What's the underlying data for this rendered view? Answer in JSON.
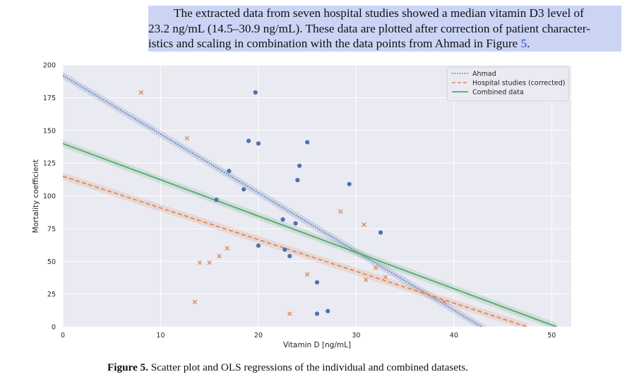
{
  "paragraph": {
    "line1": "The extracted data from seven hospital studies showed a median vitamin D3 level of",
    "line2": "23.2 ng/mL (14.5–30.9 ng/mL). These data are plotted after correction of patient character-",
    "line3_pre": "istics and scaling in combination with the data points from Ahmad in Figure ",
    "line3_link": "5",
    "line3_post": "."
  },
  "caption": {
    "label": "Figure 5.",
    "text": " Scatter plot and OLS regressions of the individual and combined datasets."
  },
  "colors": {
    "ahmad": "#4c72b0",
    "hospital": "#dd8452",
    "combined": "#55a868",
    "plot_bg": "#eaeaf2",
    "grid": "#ffffff"
  },
  "chart_data": {
    "type": "scatter",
    "xlabel": "Vitamin D [ng/mL]",
    "ylabel": "Mortality coefficient",
    "xlim": [
      0,
      52
    ],
    "ylim": [
      0,
      200
    ],
    "xticks": [
      0,
      10,
      20,
      30,
      40,
      50
    ],
    "yticks": [
      0,
      25,
      50,
      75,
      100,
      125,
      150,
      175,
      200
    ],
    "grid": true,
    "legend_position": "top-right",
    "legend": [
      {
        "label": "Ahmad",
        "style": "dotted",
        "color": "#4c72b0"
      },
      {
        "label": "Hospital studies (corrected)",
        "style": "dashed",
        "color": "#dd8452"
      },
      {
        "label": "Combined data",
        "style": "solid",
        "color": "#55a868"
      }
    ],
    "scatter": [
      {
        "name": "Ahmad",
        "marker": "circle",
        "color": "#4c72b0",
        "points": [
          [
            19.7,
            179
          ],
          [
            19.0,
            142
          ],
          [
            20.0,
            140
          ],
          [
            25.0,
            141
          ],
          [
            24.2,
            123
          ],
          [
            24.0,
            112
          ],
          [
            17.0,
            119
          ],
          [
            18.5,
            105
          ],
          [
            29.3,
            109
          ],
          [
            15.7,
            97
          ],
          [
            22.5,
            82
          ],
          [
            23.8,
            79
          ],
          [
            32.5,
            72
          ],
          [
            20.0,
            62
          ],
          [
            22.7,
            59
          ],
          [
            23.2,
            54
          ],
          [
            26.0,
            34
          ],
          [
            26.0,
            10
          ],
          [
            27.1,
            12
          ]
        ]
      },
      {
        "name": "Hospital studies (corrected)",
        "marker": "x",
        "color": "#dd8452",
        "points": [
          [
            8.0,
            179
          ],
          [
            12.7,
            144
          ],
          [
            28.4,
            88
          ],
          [
            30.8,
            78
          ],
          [
            16.8,
            60
          ],
          [
            16.0,
            54
          ],
          [
            14.0,
            49
          ],
          [
            15.0,
            49
          ],
          [
            25.0,
            40
          ],
          [
            32.0,
            45
          ],
          [
            31.0,
            36
          ],
          [
            33.0,
            38
          ],
          [
            13.5,
            19
          ],
          [
            23.2,
            10
          ],
          [
            39.0,
            19
          ]
        ]
      }
    ],
    "regressions": [
      {
        "name": "Ahmad",
        "style": "dotted",
        "color": "#4c72b0",
        "x": [
          0,
          43.5
        ],
        "y": [
          192,
          -3
        ]
      },
      {
        "name": "Hospital studies (corrected)",
        "style": "dashed",
        "color": "#dd8452",
        "x": [
          0,
          47.5
        ],
        "y": [
          115,
          0
        ]
      },
      {
        "name": "Combined data",
        "style": "solid",
        "color": "#55a868",
        "x": [
          0,
          50.5
        ],
        "y": [
          140,
          0
        ]
      }
    ]
  }
}
